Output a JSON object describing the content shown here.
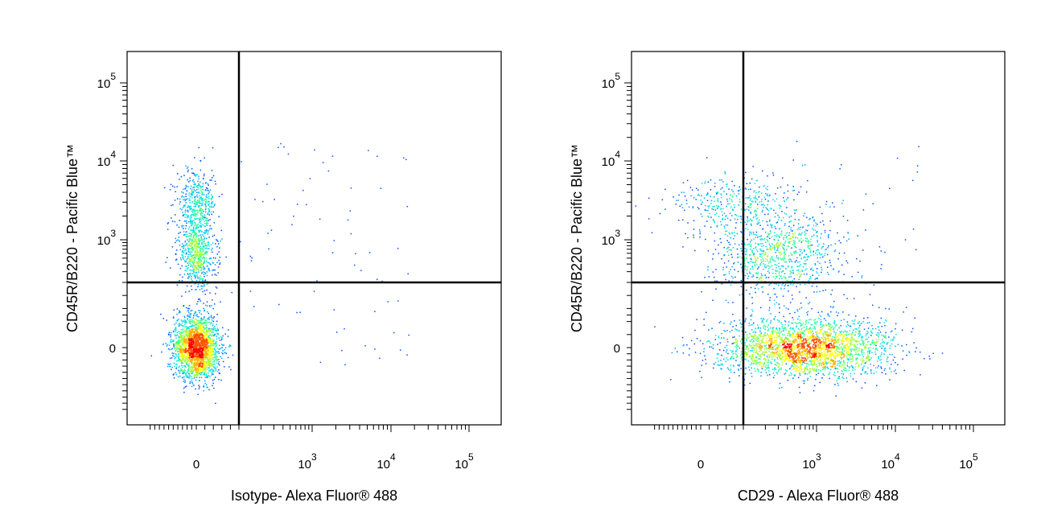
{
  "chart_data": [
    {
      "type": "scatter",
      "xlabel": "Isotype- Alexa Fluor® 488",
      "ylabel": "CD45R/B220 - Pacific Blue™",
      "x_scale": "biexponential",
      "y_scale": "biexponential",
      "xlim": [
        -300,
        200000
      ],
      "ylim": [
        -500,
        200000
      ],
      "x_ticks": [
        {
          "base": "0",
          "exp": "",
          "value": 0
        },
        {
          "base": "10",
          "exp": "3",
          "value": 1000
        },
        {
          "base": "10",
          "exp": "4",
          "value": 10000
        },
        {
          "base": "10",
          "exp": "5",
          "value": 100000
        }
      ],
      "y_ticks": [
        {
          "base": "0",
          "exp": "",
          "value": 0
        },
        {
          "base": "10",
          "exp": "3",
          "value": 1000
        },
        {
          "base": "10",
          "exp": "4",
          "value": 10000
        },
        {
          "base": "10",
          "exp": "5",
          "value": 100000
        }
      ],
      "gate": {
        "x": 100,
        "y": 200
      },
      "populations": [
        {
          "x": 0,
          "y": 0,
          "count": 2200,
          "peak": "red"
        },
        {
          "x": 0,
          "y": 600,
          "count": 650,
          "peak": "cyan"
        },
        {
          "x": 0,
          "y": 3000,
          "count": 450,
          "peak": "cyan"
        }
      ]
    },
    {
      "type": "scatter",
      "xlabel": "CD29 - Alexa Fluor® 488",
      "ylabel": "CD45R/B220 - Pacific Blue™",
      "x_scale": "biexponential",
      "y_scale": "biexponential",
      "xlim": [
        -300,
        200000
      ],
      "ylim": [
        -500,
        200000
      ],
      "x_ticks": [
        {
          "base": "0",
          "exp": "",
          "value": 0
        },
        {
          "base": "10",
          "exp": "3",
          "value": 1000
        },
        {
          "base": "10",
          "exp": "4",
          "value": 10000
        },
        {
          "base": "10",
          "exp": "5",
          "value": 100000
        }
      ],
      "y_ticks": [
        {
          "base": "0",
          "exp": "",
          "value": 0
        },
        {
          "base": "10",
          "exp": "3",
          "value": 1000
        },
        {
          "base": "10",
          "exp": "4",
          "value": 10000
        },
        {
          "base": "10",
          "exp": "5",
          "value": 100000
        }
      ],
      "gate": {
        "x": 100,
        "y": 200
      },
      "populations": [
        {
          "x": 700,
          "y": 0,
          "count": 2600,
          "peak": "red"
        },
        {
          "x": 300,
          "y": 600,
          "count": 900,
          "peak": "green"
        },
        {
          "x": 80,
          "y": 2800,
          "count": 350,
          "peak": "cyan"
        }
      ]
    }
  ]
}
